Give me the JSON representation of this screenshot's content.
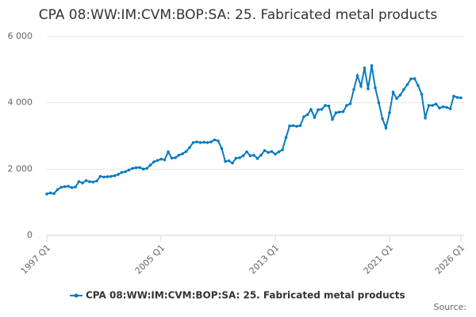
{
  "chart_data": {
    "type": "line",
    "title": "CPA 08:WW:IM:CVM:BOP:SA: 25. Fabricated metal products",
    "source": "Source:",
    "categories": [
      "1997 Q1",
      null,
      null,
      null,
      null,
      null,
      null,
      null,
      null,
      null,
      null,
      null,
      null,
      null,
      null,
      null,
      null,
      null,
      null,
      null,
      null,
      null,
      null,
      null,
      null,
      null,
      null,
      null,
      null,
      null,
      null,
      null,
      "2005 Q1",
      null,
      null,
      null,
      null,
      null,
      null,
      null,
      null,
      null,
      null,
      null,
      null,
      null,
      null,
      null,
      null,
      null,
      null,
      null,
      null,
      null,
      null,
      null,
      null,
      null,
      null,
      null,
      null,
      null,
      null,
      null,
      "2013 Q1",
      null,
      null,
      null,
      null,
      null,
      null,
      null,
      null,
      null,
      null,
      null,
      null,
      null,
      null,
      null,
      null,
      null,
      null,
      null,
      null,
      null,
      null,
      null,
      null,
      null,
      null,
      null,
      null,
      null,
      null,
      null,
      "2021 Q1",
      null,
      null,
      null,
      null,
      null,
      null,
      null,
      null,
      null,
      null,
      null,
      null,
      null,
      null,
      null,
      null,
      null,
      null,
      null,
      "2026 Q1"
    ],
    "series": [
      {
        "name": "CPA 08:WW:IM:CVM:BOP:SA: 25. Fabricated metal products",
        "color": "#0a7bbf",
        "values": [
          1250,
          1280,
          1260,
          1380,
          1450,
          1470,
          1480,
          1440,
          1460,
          1620,
          1580,
          1650,
          1620,
          1610,
          1640,
          1780,
          1760,
          1770,
          1780,
          1800,
          1840,
          1900,
          1920,
          1970,
          2020,
          2040,
          2050,
          2000,
          2020,
          2120,
          2220,
          2260,
          2300,
          2280,
          2520,
          2330,
          2340,
          2420,
          2460,
          2530,
          2650,
          2800,
          2820,
          2800,
          2810,
          2800,
          2820,
          2880,
          2850,
          2620,
          2230,
          2250,
          2180,
          2330,
          2340,
          2400,
          2520,
          2400,
          2420,
          2320,
          2420,
          2560,
          2500,
          2530,
          2450,
          2520,
          2580,
          2950,
          3300,
          3310,
          3290,
          3310,
          3580,
          3640,
          3800,
          3560,
          3790,
          3800,
          3920,
          3900,
          3500,
          3700,
          3720,
          3730,
          3920,
          3970,
          4400,
          4820,
          4500,
          5050,
          4420,
          5120,
          4450,
          4000,
          3520,
          3240,
          3700,
          4320,
          4130,
          4230,
          4400,
          4550,
          4720,
          4730,
          4520,
          4260,
          3540,
          3920,
          3920,
          3960,
          3840,
          3880,
          3860,
          3820,
          4200,
          4160,
          4150
        ]
      }
    ],
    "ylim": [
      0,
      6000
    ],
    "yticks": [
      0,
      {
        "value": 2000,
        "label": "2 000"
      },
      {
        "value": 4000,
        "label": "4 000"
      },
      {
        "value": 6000,
        "label": "6 000"
      }
    ],
    "grid": true,
    "legend": "bottom"
  }
}
